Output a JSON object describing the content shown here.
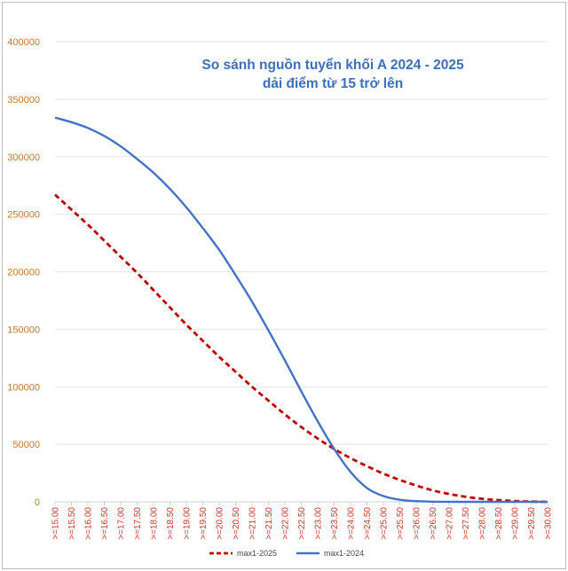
{
  "chart_data": {
    "type": "line",
    "title": [
      "So sánh nguồn tuyển khối A 2024 - 2025",
      "dải điểm từ 15 trở lên"
    ],
    "xlabel": "",
    "ylabel": "",
    "ylim": [
      0,
      400000
    ],
    "yticks": [
      0,
      50000,
      100000,
      150000,
      200000,
      250000,
      300000,
      350000,
      400000
    ],
    "ytick_labels": [
      "0",
      "50000",
      "100000",
      "150000",
      "200000",
      "250000",
      "300000",
      "350000",
      "400000"
    ],
    "grid": true,
    "legend_position": "bottom",
    "categories": [
      ">=15.00",
      ">=15.50",
      ">=16.00",
      ">=16.50",
      ">=17.00",
      ">=17.50",
      ">=18.00",
      ">=18.50",
      ">=19.00",
      ">=19.50",
      ">=20.00",
      ">=20.50",
      ">=21.00",
      ">=21.50",
      ">=22.00",
      ">=22.50",
      ">=23.00",
      ">=23.50",
      ">=24.00",
      ">=24.50",
      ">=25.00",
      ">=25.50",
      ">=26.00",
      ">=26.50",
      ">=27.00",
      ">=27.50",
      ">=28.00",
      ">=28.50",
      ">=29.00",
      ">=29.50",
      ">=30.00"
    ],
    "series": [
      {
        "name": "max1-2025",
        "color": "#c00000",
        "style": "dashed",
        "values": [
          267000,
          254000,
          241000,
          227000,
          213000,
          199000,
          184000,
          169000,
          154000,
          140000,
          126000,
          113000,
          100000,
          88000,
          76000,
          65000,
          55000,
          46000,
          38000,
          31000,
          24500,
          19000,
          14200,
          10000,
          6800,
          4400,
          2700,
          1500,
          700,
          250,
          0
        ]
      },
      {
        "name": "max1-2024",
        "color": "#4472c4",
        "style": "solid",
        "values": [
          334000,
          330000,
          325000,
          318000,
          309000,
          298000,
          286000,
          272000,
          256000,
          238000,
          219000,
          197000,
          174000,
          149000,
          123000,
          96000,
          70000,
          46000,
          26000,
          12000,
          5000,
          1800,
          600,
          150,
          30,
          0,
          0,
          0,
          0,
          0,
          0
        ]
      }
    ]
  }
}
